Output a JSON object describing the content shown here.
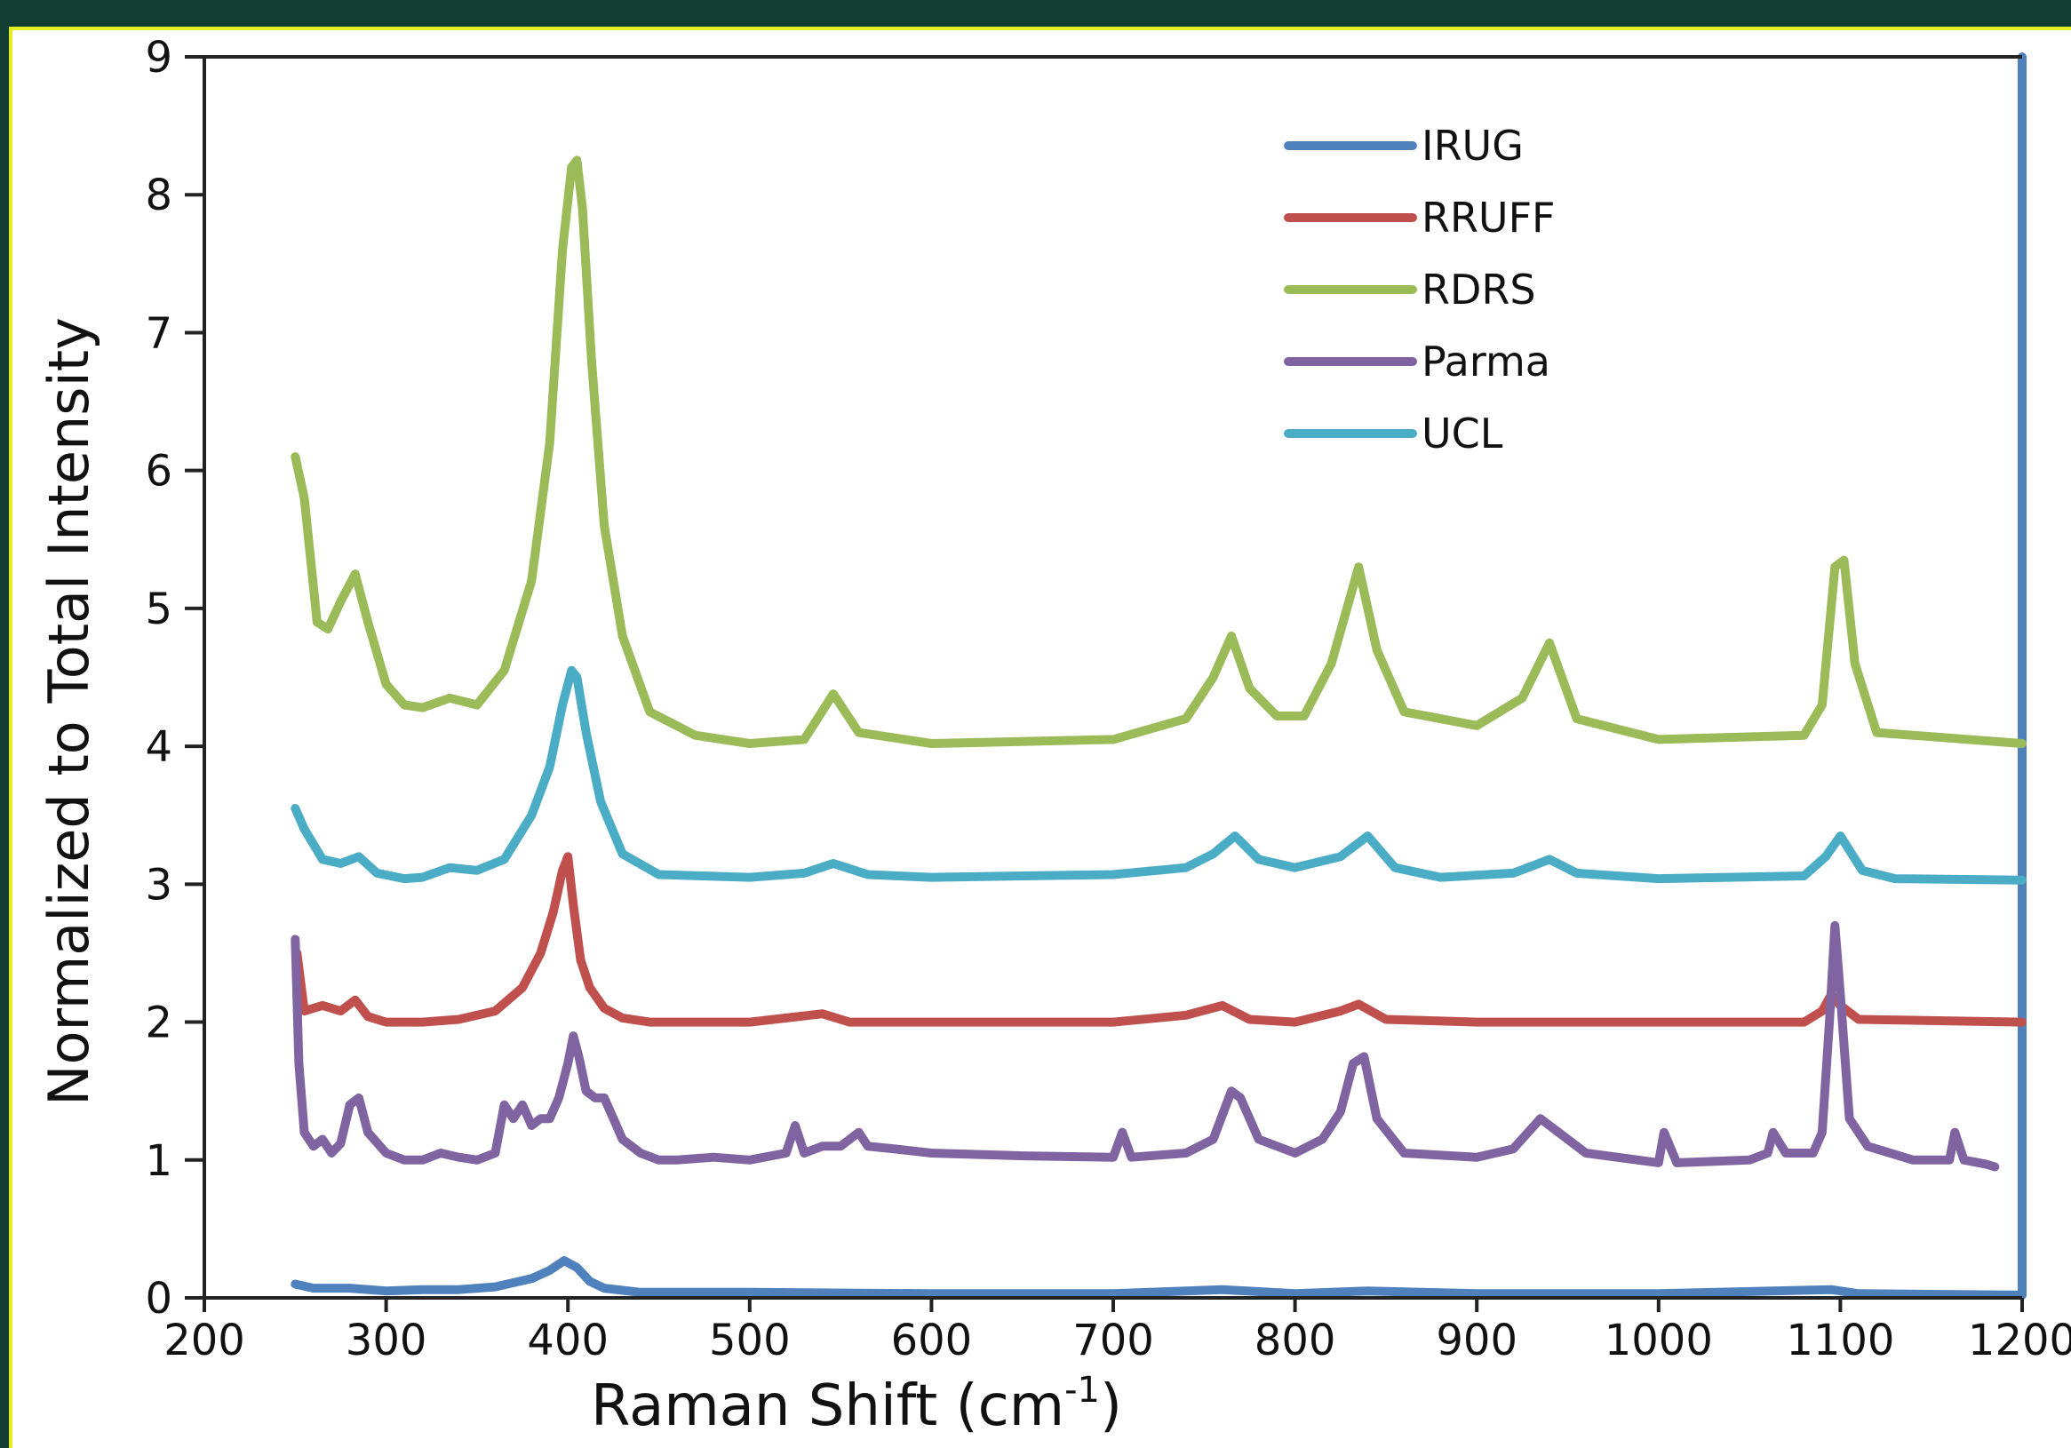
{
  "chart_data": {
    "type": "line",
    "xlabel": "Raman Shift (cm",
    "xlabel_sup": "-1",
    "xlabel_end": ")",
    "ylabel": "Normalized to Total Intensity",
    "xlim": [
      200,
      1200
    ],
    "ylim": [
      0,
      9
    ],
    "xticks": [
      "200",
      "300",
      "400",
      "500",
      "600",
      "700",
      "800",
      "900",
      "1000",
      "1100",
      "1200"
    ],
    "yticks": [
      "0",
      "1",
      "2",
      "3",
      "4",
      "5",
      "6",
      "7",
      "8",
      "9"
    ],
    "legend_position": "top-right",
    "grid": false,
    "series": [
      {
        "name": "IRUG",
        "color": "#4f81bd",
        "x": [
          250,
          260,
          280,
          300,
          320,
          340,
          360,
          380,
          390,
          398,
          405,
          412,
          420,
          440,
          500,
          600,
          700,
          760,
          800,
          840,
          900,
          1000,
          1095,
          1110,
          1200,
          1200,
          1200
        ],
        "y": [
          0.1,
          0.07,
          0.07,
          0.05,
          0.06,
          0.06,
          0.08,
          0.14,
          0.2,
          0.27,
          0.22,
          0.12,
          0.07,
          0.04,
          0.04,
          0.03,
          0.03,
          0.06,
          0.03,
          0.05,
          0.03,
          0.03,
          0.06,
          0.03,
          0.02,
          0.03,
          9.0
        ]
      },
      {
        "name": "RRUFF",
        "color": "#c0504d",
        "x": [
          251,
          255,
          265,
          275,
          283,
          290,
          300,
          320,
          340,
          360,
          375,
          385,
          392,
          397,
          400,
          403,
          407,
          412,
          420,
          430,
          445,
          500,
          540,
          555,
          600,
          700,
          740,
          760,
          775,
          800,
          825,
          835,
          850,
          900,
          1000,
          1080,
          1090,
          1095,
          1100,
          1110,
          1200
        ],
        "y": [
          2.5,
          2.08,
          2.12,
          2.08,
          2.16,
          2.04,
          2.0,
          2.0,
          2.02,
          2.08,
          2.25,
          2.5,
          2.8,
          3.1,
          3.2,
          2.85,
          2.45,
          2.25,
          2.1,
          2.03,
          2.0,
          2.0,
          2.06,
          2.0,
          2.0,
          2.0,
          2.05,
          2.12,
          2.02,
          2.0,
          2.08,
          2.13,
          2.02,
          2.0,
          2.0,
          2.0,
          2.08,
          2.2,
          2.12,
          2.02,
          2.0
        ]
      },
      {
        "name": "RDRS",
        "color": "#9bbb59",
        "x": [
          250,
          255,
          262,
          268,
          275,
          283,
          290,
          300,
          310,
          320,
          335,
          350,
          365,
          380,
          390,
          397,
          402,
          405,
          408,
          413,
          420,
          430,
          445,
          470,
          500,
          530,
          546,
          560,
          600,
          700,
          740,
          755,
          765,
          775,
          790,
          805,
          820,
          835,
          845,
          860,
          900,
          925,
          940,
          955,
          1000,
          1080,
          1090,
          1097,
          1102,
          1108,
          1120,
          1200
        ],
        "y": [
          6.1,
          5.8,
          4.9,
          4.85,
          5.05,
          5.25,
          4.9,
          4.45,
          4.3,
          4.28,
          4.35,
          4.3,
          4.55,
          5.2,
          6.2,
          7.6,
          8.2,
          8.25,
          7.9,
          6.8,
          5.6,
          4.8,
          4.25,
          4.08,
          4.02,
          4.05,
          4.38,
          4.1,
          4.02,
          4.05,
          4.2,
          4.5,
          4.8,
          4.42,
          4.22,
          4.22,
          4.6,
          5.3,
          4.7,
          4.25,
          4.15,
          4.35,
          4.75,
          4.2,
          4.05,
          4.08,
          4.3,
          5.3,
          5.35,
          4.6,
          4.1,
          4.02
        ]
      },
      {
        "name": "Parma",
        "color": "#8064a2",
        "x": [
          250,
          252,
          255,
          260,
          265,
          270,
          275,
          280,
          285,
          290,
          300,
          310,
          320,
          330,
          340,
          350,
          360,
          365,
          370,
          375,
          380,
          385,
          390,
          395,
          400,
          403,
          406,
          410,
          415,
          420,
          425,
          430,
          440,
          450,
          460,
          480,
          500,
          520,
          525,
          530,
          540,
          550,
          560,
          565,
          580,
          600,
          650,
          700,
          705,
          710,
          740,
          755,
          765,
          770,
          780,
          800,
          815,
          825,
          832,
          838,
          845,
          860,
          900,
          920,
          935,
          945,
          960,
          1000,
          1003,
          1010,
          1050,
          1060,
          1063,
          1070,
          1085,
          1090,
          1094,
          1097,
          1100,
          1105,
          1115,
          1140,
          1160,
          1163,
          1168,
          1180,
          1185
        ],
        "y": [
          2.6,
          1.7,
          1.2,
          1.1,
          1.15,
          1.05,
          1.12,
          1.4,
          1.45,
          1.2,
          1.05,
          1.0,
          1.0,
          1.05,
          1.02,
          1.0,
          1.05,
          1.4,
          1.3,
          1.4,
          1.25,
          1.3,
          1.3,
          1.45,
          1.7,
          1.9,
          1.75,
          1.5,
          1.45,
          1.45,
          1.3,
          1.15,
          1.05,
          1.0,
          1.0,
          1.02,
          1.0,
          1.05,
          1.25,
          1.05,
          1.1,
          1.1,
          1.2,
          1.1,
          1.08,
          1.05,
          1.03,
          1.02,
          1.2,
          1.02,
          1.05,
          1.15,
          1.5,
          1.45,
          1.15,
          1.05,
          1.15,
          1.35,
          1.7,
          1.75,
          1.3,
          1.05,
          1.02,
          1.08,
          1.3,
          1.2,
          1.05,
          0.98,
          1.2,
          0.98,
          1.0,
          1.05,
          1.2,
          1.05,
          1.05,
          1.2,
          2.0,
          2.7,
          2.2,
          1.3,
          1.1,
          1.0,
          1.0,
          1.2,
          1.0,
          0.97,
          0.95
        ]
      },
      {
        "name": "UCL",
        "color": "#4bacc6",
        "x": [
          250,
          255,
          265,
          275,
          285,
          295,
          310,
          320,
          335,
          350,
          365,
          380,
          390,
          397,
          402,
          405,
          410,
          418,
          430,
          450,
          500,
          530,
          546,
          565,
          600,
          700,
          740,
          755,
          767,
          780,
          800,
          825,
          840,
          855,
          880,
          920,
          940,
          955,
          1000,
          1080,
          1092,
          1100,
          1112,
          1130,
          1200
        ],
        "y": [
          3.55,
          3.4,
          3.18,
          3.15,
          3.2,
          3.08,
          3.04,
          3.05,
          3.12,
          3.1,
          3.18,
          3.5,
          3.85,
          4.3,
          4.55,
          4.5,
          4.1,
          3.6,
          3.22,
          3.07,
          3.05,
          3.08,
          3.15,
          3.07,
          3.05,
          3.07,
          3.12,
          3.22,
          3.35,
          3.18,
          3.12,
          3.2,
          3.35,
          3.12,
          3.05,
          3.08,
          3.18,
          3.08,
          3.04,
          3.06,
          3.2,
          3.35,
          3.1,
          3.04,
          3.03
        ]
      }
    ]
  }
}
